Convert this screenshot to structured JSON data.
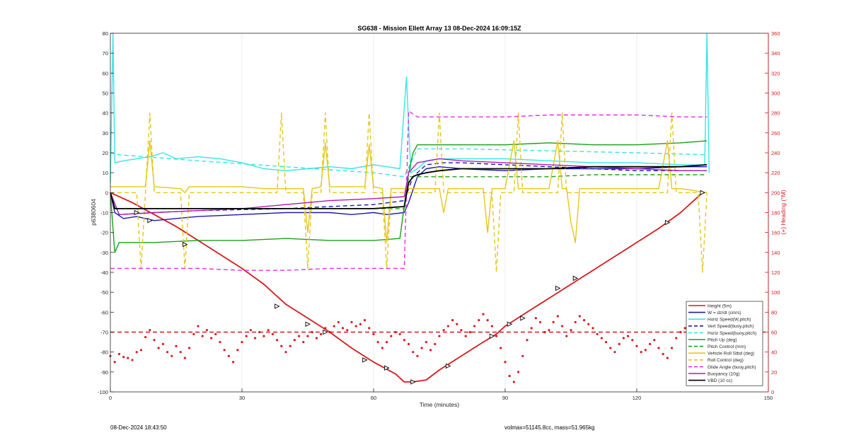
{
  "chart_data": {
    "type": "line",
    "title": "SG638 - Mission Ellett Array 13 08-Dec-2024 16:09:15Z",
    "xlabel": "Time (minutes)",
    "ylabel": "p6380604",
    "y2label": "(+) Heading (°M)",
    "xlim": [
      0,
      150
    ],
    "ylim": [
      -100,
      80
    ],
    "y2lim": [
      0,
      360
    ],
    "xticks": [
      0,
      30,
      60,
      90,
      120,
      150
    ],
    "yticks": [
      -100,
      -90,
      -80,
      -70,
      -60,
      -50,
      -40,
      -30,
      -20,
      -10,
      0,
      10,
      20,
      30,
      40,
      50,
      60,
      70,
      80
    ],
    "y2ticks": [
      0,
      20,
      40,
      60,
      80,
      100,
      120,
      140,
      160,
      180,
      200,
      220,
      240,
      260,
      280,
      300,
      320,
      340,
      360
    ],
    "legend_position": "bottom-right",
    "series": [
      {
        "name": "Height (5m)",
        "color": "#d7191c",
        "style": "solid",
        "x": [
          0,
          5,
          10,
          15,
          20,
          25,
          30,
          35,
          40,
          45,
          50,
          55,
          60,
          65,
          67,
          69,
          72,
          75,
          80,
          85,
          88,
          90,
          95,
          100,
          105,
          110,
          115,
          120,
          125,
          130,
          135
        ],
        "y": [
          0,
          -5,
          -11,
          -17,
          -24,
          -31,
          -38,
          -46,
          -56,
          -63,
          -70,
          -78,
          -85,
          -91,
          -95,
          -95,
          -94,
          -89,
          -82,
          -75,
          -71,
          -67,
          -60,
          -53,
          -46,
          -39,
          -32,
          -25,
          -18,
          -10,
          0
        ]
      },
      {
        "name": "W = dz/dt (cm/s)",
        "color": "#1a1ab0",
        "style": "solid",
        "x": [
          0,
          1,
          3,
          6,
          10,
          15,
          20,
          30,
          40,
          50,
          55,
          60,
          63,
          67,
          68,
          70,
          72,
          75,
          80,
          90,
          100,
          110,
          120,
          130,
          136
        ],
        "y": [
          0,
          -10,
          -13,
          -12,
          -14,
          -13,
          -12,
          -11,
          -10,
          -10,
          -11,
          -10,
          -11,
          -10,
          -5,
          8,
          12,
          13,
          12,
          11,
          12,
          12,
          12,
          13,
          13
        ]
      },
      {
        "name": "Horiz Speed(W,pitch)",
        "color": "#35e5e5",
        "style": "solid",
        "x": [
          0,
          0.6,
          1,
          3,
          6,
          9,
          12,
          15,
          20,
          25,
          30,
          35,
          40,
          45,
          50,
          55,
          60,
          63,
          66,
          67.5,
          68.5,
          70,
          72,
          75,
          80,
          90,
          100,
          110,
          120,
          130,
          135.5,
          136,
          136.5
        ],
        "y": [
          5,
          80,
          15,
          16,
          17,
          18,
          20,
          17,
          18,
          17,
          15,
          12,
          11,
          12,
          13,
          12,
          14,
          13,
          12,
          58,
          10,
          12,
          16,
          17,
          17,
          17,
          16,
          15,
          15,
          14,
          14,
          80,
          10
        ]
      },
      {
        "name": "Vert Speed(buoy,pitch)",
        "color": "#1a1ab0",
        "style": "dashed",
        "x": [
          0,
          2,
          10,
          20,
          30,
          40,
          50,
          60,
          67,
          69,
          72,
          76,
          80,
          90,
          100,
          110,
          120,
          130,
          136
        ],
        "y": [
          0,
          -11,
          -10,
          -9,
          -8.5,
          -8,
          -7,
          -6,
          -4,
          8,
          14,
          15,
          15,
          14,
          13,
          12,
          11,
          11,
          11
        ]
      },
      {
        "name": "Horiz Speed(buoy,pitch)",
        "color": "#35e5e5",
        "style": "dashed",
        "x": [
          0,
          2,
          20,
          40,
          60,
          67,
          70,
          80,
          100,
          120,
          136
        ],
        "y": [
          20,
          19,
          16,
          13,
          10,
          8,
          22,
          22,
          21,
          20,
          19
        ]
      },
      {
        "name": "Pitch Up (deg)",
        "color": "#1aa01a",
        "style": "solid",
        "x": [
          0,
          1,
          2,
          10,
          20,
          30,
          40,
          50,
          60,
          66,
          68,
          69,
          70,
          80,
          90,
          100,
          110,
          120,
          130,
          136
        ],
        "y": [
          0,
          -30,
          -25,
          -25,
          -24,
          -24,
          -23,
          -24,
          -24,
          -23,
          10,
          20,
          24,
          24,
          24,
          25,
          24,
          24,
          25,
          26
        ]
      },
      {
        "name": "Pitch Control (mm)",
        "color": "#1aa01a",
        "style": "dashed",
        "x": [
          0,
          1,
          10,
          20,
          30,
          40,
          50,
          60,
          66,
          67,
          68,
          70,
          80,
          90,
          100,
          110,
          120,
          130,
          136
        ],
        "y": [
          0,
          -8,
          -8,
          -8,
          -8,
          -8,
          -8,
          -8,
          -8,
          -8,
          8,
          8,
          8,
          8,
          8,
          9,
          9,
          9,
          9
        ]
      },
      {
        "name": "Vehicle Roll Stbd (deg)",
        "color": "#e5c61a",
        "style": "solid",
        "x": [
          0,
          5,
          8,
          9,
          10,
          16,
          17,
          18,
          25,
          30,
          35,
          40,
          44,
          45,
          46,
          48,
          49,
          50,
          58,
          59,
          60,
          62,
          63,
          64,
          66,
          68,
          70,
          75,
          76,
          77,
          78,
          85,
          86,
          87,
          88,
          90,
          92,
          93,
          94,
          100,
          102,
          103,
          104,
          105,
          106,
          107,
          110,
          125,
          127,
          128,
          129,
          130,
          136
        ],
        "y": [
          3,
          3,
          3,
          26,
          3,
          2,
          0,
          3,
          3,
          3,
          2,
          2,
          2,
          -20,
          2,
          3,
          25,
          3,
          3,
          24,
          3,
          2,
          -25,
          2,
          2,
          2,
          2,
          2,
          -10,
          2,
          2,
          2,
          -20,
          2,
          2,
          2,
          26,
          2,
          2,
          2,
          26,
          2,
          2,
          -15,
          -25,
          2,
          2,
          2,
          26,
          2,
          2,
          2,
          0
        ]
      },
      {
        "name": "Roll Control (deg)",
        "color": "#e5c61a",
        "style": "dashed",
        "x": [
          0,
          6,
          7,
          8,
          9,
          10,
          16,
          17,
          18,
          38,
          39,
          40,
          44,
          45,
          46,
          48,
          49,
          50,
          58,
          59,
          60,
          62,
          63,
          64,
          74,
          75,
          76,
          87,
          88,
          89,
          92,
          93,
          94,
          102,
          103,
          104,
          127,
          128,
          129,
          134,
          135,
          136
        ],
        "y": [
          0,
          0,
          -38,
          0,
          40,
          0,
          0,
          -38,
          0,
          0,
          40,
          0,
          0,
          -38,
          0,
          0,
          40,
          0,
          0,
          40,
          0,
          0,
          -38,
          0,
          0,
          40,
          0,
          0,
          -40,
          0,
          0,
          40,
          0,
          0,
          40,
          0,
          0,
          40,
          0,
          0,
          -40,
          0
        ]
      },
      {
        "name": "Glide Angle (buoy,pitch)",
        "color": "#e52ee5",
        "style": "dashed",
        "x": [
          0,
          2,
          10,
          20,
          30,
          40,
          50,
          60,
          66,
          67,
          68,
          70,
          80,
          90,
          100,
          110,
          120,
          130,
          136
        ],
        "y": [
          -38,
          -38,
          -38,
          -38,
          -39,
          -39,
          -38,
          -38,
          -38,
          -38,
          41,
          38,
          38,
          38,
          39,
          39,
          39,
          38,
          38
        ]
      },
      {
        "name": "Buoyancy (10g)",
        "color": "#b01ab0",
        "style": "solid",
        "x": [
          0,
          2,
          10,
          20,
          30,
          40,
          50,
          60,
          67,
          68,
          70,
          75,
          80,
          90,
          100,
          110,
          120,
          130,
          136
        ],
        "y": [
          0,
          -11,
          -10,
          -9,
          -8,
          -6,
          -4,
          -3,
          -2,
          10,
          15,
          17,
          16,
          15,
          14,
          13,
          12,
          11,
          11
        ]
      },
      {
        "name": "VBD (10 cc)",
        "color": "#000000",
        "style": "solid",
        "x": [
          0,
          1,
          10,
          20,
          30,
          40,
          50,
          60,
          67,
          68,
          69,
          70,
          72,
          75,
          80,
          90,
          100,
          110,
          120,
          130,
          136
        ],
        "y": [
          0,
          -8,
          -8,
          -8,
          -8,
          -8,
          -8,
          -8,
          -7,
          5,
          8,
          9,
          10,
          11,
          12,
          12,
          12,
          13,
          13,
          13,
          14
        ]
      }
    ],
    "heading": {
      "axis": "right",
      "color": "#d7191c",
      "target": 60,
      "points": [
        [
          0,
          36
        ],
        [
          1,
          30
        ],
        [
          2,
          38
        ],
        [
          3,
          35
        ],
        [
          4,
          34
        ],
        [
          5,
          32
        ],
        [
          6,
          40
        ],
        [
          7,
          42
        ],
        [
          8,
          55
        ],
        [
          9,
          62
        ],
        [
          10,
          52
        ],
        [
          11,
          44
        ],
        [
          12,
          48
        ],
        [
          13,
          40
        ],
        [
          14,
          36
        ],
        [
          15,
          46
        ],
        [
          16,
          40
        ],
        [
          17,
          34
        ],
        [
          18,
          44
        ],
        [
          19,
          58
        ],
        [
          20,
          66
        ],
        [
          21,
          56
        ],
        [
          22,
          62
        ],
        [
          23,
          54
        ],
        [
          24,
          58
        ],
        [
          25,
          50
        ],
        [
          26,
          42
        ],
        [
          27,
          36
        ],
        [
          28,
          30
        ],
        [
          29,
          42
        ],
        [
          30,
          50
        ],
        [
          31,
          56
        ],
        [
          32,
          62
        ],
        [
          33,
          54
        ],
        [
          34,
          60
        ],
        [
          35,
          56
        ],
        [
          36,
          62
        ],
        [
          37,
          58
        ],
        [
          38,
          52
        ],
        [
          39,
          46
        ],
        [
          40,
          40
        ],
        [
          41,
          46
        ],
        [
          42,
          52
        ],
        [
          43,
          56
        ],
        [
          44,
          50
        ],
        [
          45,
          56
        ],
        [
          46,
          60
        ],
        [
          47,
          54
        ],
        [
          48,
          58
        ],
        [
          49,
          64
        ],
        [
          50,
          60
        ],
        [
          51,
          66
        ],
        [
          52,
          70
        ],
        [
          53,
          64
        ],
        [
          54,
          62
        ],
        [
          55,
          70
        ],
        [
          56,
          66
        ],
        [
          57,
          68
        ],
        [
          58,
          72
        ],
        [
          59,
          64
        ],
        [
          60,
          58
        ],
        [
          61,
          50
        ],
        [
          62,
          44
        ],
        [
          63,
          50
        ],
        [
          64,
          56
        ],
        [
          65,
          60
        ],
        [
          66,
          58
        ],
        [
          67,
          52
        ],
        [
          68,
          48
        ],
        [
          69,
          40
        ],
        [
          70,
          36
        ],
        [
          71,
          44
        ],
        [
          72,
          50
        ],
        [
          73,
          42
        ],
        [
          74,
          48
        ],
        [
          75,
          56
        ],
        [
          76,
          62
        ],
        [
          77,
          66
        ],
        [
          78,
          72
        ],
        [
          79,
          68
        ],
        [
          80,
          62
        ],
        [
          81,
          56
        ],
        [
          82,
          60
        ],
        [
          83,
          66
        ],
        [
          84,
          72
        ],
        [
          85,
          78
        ],
        [
          86,
          72
        ],
        [
          87,
          66
        ],
        [
          88,
          56
        ],
        [
          89,
          44
        ],
        [
          90,
          30
        ],
        [
          91,
          16
        ],
        [
          92,
          10
        ],
        [
          93,
          20
        ],
        [
          94,
          36
        ],
        [
          95,
          52
        ],
        [
          96,
          64
        ],
        [
          97,
          74
        ],
        [
          98,
          70
        ],
        [
          99,
          60
        ],
        [
          100,
          62
        ],
        [
          101,
          70
        ],
        [
          102,
          76
        ],
        [
          103,
          66
        ],
        [
          104,
          56
        ],
        [
          105,
          62
        ],
        [
          106,
          70
        ],
        [
          107,
          76
        ],
        [
          108,
          72
        ],
        [
          109,
          68
        ],
        [
          110,
          64
        ],
        [
          111,
          58
        ],
        [
          112,
          54
        ],
        [
          113,
          50
        ],
        [
          114,
          44
        ],
        [
          115,
          40
        ],
        [
          116,
          48
        ],
        [
          117,
          54
        ],
        [
          118,
          56
        ],
        [
          119,
          52
        ],
        [
          120,
          46
        ],
        [
          121,
          40
        ],
        [
          122,
          42
        ],
        [
          123,
          48
        ],
        [
          124,
          52
        ],
        [
          125,
          44
        ],
        [
          126,
          38
        ],
        [
          127,
          34
        ],
        [
          128,
          44
        ],
        [
          129,
          54
        ],
        [
          130,
          60
        ],
        [
          131,
          64
        ],
        [
          132,
          60
        ],
        [
          133,
          56
        ]
      ]
    },
    "markers": [
      {
        "x": 6,
        "y": -10
      },
      {
        "x": 9,
        "y": -14
      },
      {
        "x": 17,
        "y": -26
      },
      {
        "x": 38,
        "y": -57
      },
      {
        "x": 45,
        "y": -66
      },
      {
        "x": 49,
        "y": -70
      },
      {
        "x": 58,
        "y": -84
      },
      {
        "x": 63,
        "y": -88
      },
      {
        "x": 69,
        "y": -95
      },
      {
        "x": 77,
        "y": -87
      },
      {
        "x": 87,
        "y": -72
      },
      {
        "x": 91,
        "y": -66
      },
      {
        "x": 94,
        "y": -63
      },
      {
        "x": 102,
        "y": -48
      },
      {
        "x": 106,
        "y": -43
      },
      {
        "x": 127,
        "y": -15
      },
      {
        "x": 135,
        "y": 0
      }
    ],
    "footer_left": "08-Dec-2024 18:43:50",
    "footer_right": "volmax=51145.8cc, mass=51.965kg"
  }
}
